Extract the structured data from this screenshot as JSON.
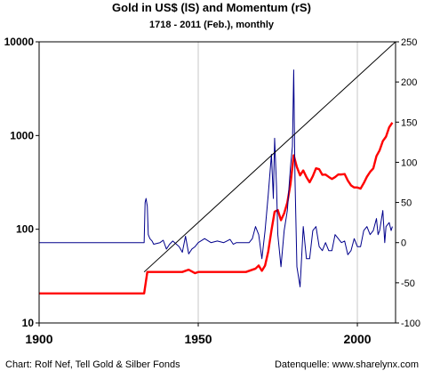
{
  "chart_data": {
    "type": "line",
    "title": "Gold in US$ (lS) and Momentum (rS)",
    "subtitle": "1718 -  2011 (Feb.),  monthly",
    "x_range": [
      1900,
      2012
    ],
    "x_ticks": [
      1900,
      1950,
      2000
    ],
    "x_tick_labels": [
      "1900",
      "1950",
      "2000"
    ],
    "y_left": {
      "scale": "log",
      "range": [
        10,
        10000
      ],
      "ticks": [
        10,
        100,
        1000,
        10000
      ],
      "tick_labels": [
        "10",
        "100",
        "1000",
        "10000"
      ]
    },
    "y_right": {
      "scale": "linear",
      "range": [
        -100,
        250
      ],
      "ticks": [
        -100,
        -50,
        0,
        50,
        100,
        150,
        200,
        250
      ],
      "tick_labels": [
        "-100",
        "-50",
        "0",
        "50",
        "100",
        "150",
        "200",
        "250"
      ]
    },
    "grid": {
      "vertical": true,
      "horizontal": false
    },
    "series": [
      {
        "axis": "left",
        "color": "#ff0000",
        "style": "line",
        "points": [
          [
            1900,
            20.67
          ],
          [
            1933,
            20.67
          ],
          [
            1934,
            35
          ],
          [
            1935,
            35
          ],
          [
            1940,
            35
          ],
          [
            1945,
            35
          ],
          [
            1947,
            37
          ],
          [
            1949,
            34
          ],
          [
            1950,
            35
          ],
          [
            1955,
            35
          ],
          [
            1960,
            35
          ],
          [
            1965,
            35
          ],
          [
            1968,
            38
          ],
          [
            1969,
            41
          ],
          [
            1970,
            36
          ],
          [
            1971,
            41
          ],
          [
            1972,
            58
          ],
          [
            1973,
            97
          ],
          [
            1974,
            154
          ],
          [
            1975,
            160
          ],
          [
            1976,
            125
          ],
          [
            1977,
            148
          ],
          [
            1978,
            193
          ],
          [
            1979,
            306
          ],
          [
            1980,
            615
          ],
          [
            1981,
            460
          ],
          [
            1982,
            376
          ],
          [
            1983,
            424
          ],
          [
            1984,
            360
          ],
          [
            1985,
            317
          ],
          [
            1986,
            368
          ],
          [
            1987,
            447
          ],
          [
            1988,
            437
          ],
          [
            1989,
            381
          ],
          [
            1990,
            383
          ],
          [
            1991,
            362
          ],
          [
            1992,
            344
          ],
          [
            1993,
            360
          ],
          [
            1994,
            384
          ],
          [
            1995,
            384
          ],
          [
            1996,
            388
          ],
          [
            1997,
            331
          ],
          [
            1998,
            294
          ],
          [
            1999,
            279
          ],
          [
            2000,
            279
          ],
          [
            2001,
            271
          ],
          [
            2002,
            310
          ],
          [
            2003,
            363
          ],
          [
            2004,
            409
          ],
          [
            2005,
            445
          ],
          [
            2006,
            604
          ],
          [
            2007,
            696
          ],
          [
            2008,
            872
          ],
          [
            2009,
            972
          ],
          [
            2010,
            1225
          ],
          [
            2011,
            1375
          ]
        ]
      },
      {
        "axis": "right",
        "color": "#00008b",
        "style": "line",
        "points": [
          [
            1900,
            0
          ],
          [
            1933,
            0
          ],
          [
            1933.3,
            50
          ],
          [
            1933.6,
            55
          ],
          [
            1934,
            45
          ],
          [
            1934.3,
            10
          ],
          [
            1934.8,
            5
          ],
          [
            1935.5,
            2
          ],
          [
            1936,
            -2
          ],
          [
            1938,
            0
          ],
          [
            1939,
            3
          ],
          [
            1940,
            -8
          ],
          [
            1941,
            -2
          ],
          [
            1942,
            2
          ],
          [
            1944,
            -5
          ],
          [
            1945,
            -12
          ],
          [
            1946,
            8
          ],
          [
            1947,
            -14
          ],
          [
            1948,
            -8
          ],
          [
            1949,
            -5
          ],
          [
            1950,
            0
          ],
          [
            1952,
            5
          ],
          [
            1954,
            0
          ],
          [
            1956,
            2
          ],
          [
            1958,
            0
          ],
          [
            1960,
            4
          ],
          [
            1961,
            -2
          ],
          [
            1962,
            0
          ],
          [
            1965,
            0
          ],
          [
            1966,
            0
          ],
          [
            1967,
            5
          ],
          [
            1968,
            20
          ],
          [
            1969,
            10
          ],
          [
            1970,
            -20
          ],
          [
            1971,
            15
          ],
          [
            1972,
            60
          ],
          [
            1973,
            110
          ],
          [
            1973.6,
            55
          ],
          [
            1974,
            130
          ],
          [
            1974.6,
            70
          ],
          [
            1975,
            10
          ],
          [
            1976,
            -30
          ],
          [
            1977,
            15
          ],
          [
            1978,
            40
          ],
          [
            1979,
            95
          ],
          [
            1979.6,
            120
          ],
          [
            1980,
            215
          ],
          [
            1980.4,
            80
          ],
          [
            1981,
            -30
          ],
          [
            1982,
            -55
          ],
          [
            1983,
            20
          ],
          [
            1984,
            -20
          ],
          [
            1985,
            -20
          ],
          [
            1986,
            15
          ],
          [
            1987,
            20
          ],
          [
            1988,
            -5
          ],
          [
            1989,
            -10
          ],
          [
            1990,
            0
          ],
          [
            1991,
            -10
          ],
          [
            1992,
            -10
          ],
          [
            1993,
            10
          ],
          [
            1994,
            5
          ],
          [
            1995,
            0
          ],
          [
            1996,
            2
          ],
          [
            1997,
            -15
          ],
          [
            1998,
            -10
          ],
          [
            1999,
            5
          ],
          [
            2000,
            -5
          ],
          [
            2001,
            -5
          ],
          [
            2002,
            15
          ],
          [
            2003,
            20
          ],
          [
            2004,
            10
          ],
          [
            2005,
            15
          ],
          [
            2006,
            30
          ],
          [
            2006.5,
            10
          ],
          [
            2007,
            15
          ],
          [
            2008,
            40
          ],
          [
            2008.6,
            0
          ],
          [
            2009,
            20
          ],
          [
            2010,
            25
          ],
          [
            2010.6,
            15
          ],
          [
            2011,
            20
          ]
        ]
      },
      {
        "axis": "left",
        "color": "#000000",
        "style": "line",
        "points": [
          [
            1933,
            35
          ],
          [
            2012,
            10000
          ]
        ]
      }
    ]
  },
  "credits": {
    "left": "Chart: Rolf Nef, Tell Gold & Silber Fonds",
    "right": "Datenquelle: www.sharelynx.com"
  }
}
